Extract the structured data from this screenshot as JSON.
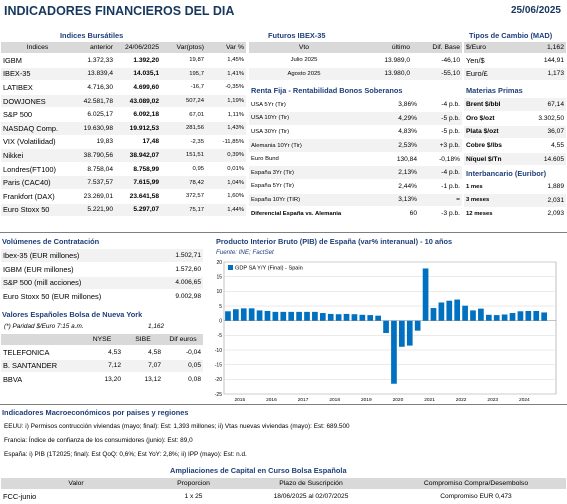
{
  "header": {
    "title": "INDICADORES FINANCIEROS DEL DIA",
    "date": "25/06/2025"
  },
  "sections": {
    "indices": "Indices Bursátiles",
    "futuros": "Futuros  IBEX-35",
    "tipos_cambio": "Tipos de Cambio (MAD)",
    "renta_fija": "Renta Fija - Rentabilidad Bonos Soberanos",
    "materias": "Materias Primas",
    "euribor": "Interbancario (Euribor)",
    "volumenes": "Volúmenes de Contratación",
    "valores_ny": "Valores Españoles Bolsa de Nueva York",
    "pib": "Producto Interior Bruto (PIB) de España (var% interanual) - 10 años",
    "macro": "Indicadores Macroeconómicos por paises y regiones",
    "ampliaciones": "Ampliaciones de Capital en Curso Bolsa Española"
  },
  "indices": {
    "headers": [
      "Indices",
      "anterior",
      "24/06/2025",
      "Var(ptos)",
      "Var %"
    ],
    "rows": [
      [
        "IGBM",
        "1.372,33",
        "1.392,20",
        "19,87",
        "1,45%"
      ],
      [
        "IBEX-35",
        "13.839,4",
        "14.035,1",
        "195,7",
        "1,41%"
      ],
      [
        "LATIBEX",
        "4.716,30",
        "4.699,60",
        "-16,7",
        "-0,35%"
      ],
      [
        "DOWJONES",
        "42.581,78",
        "43.089,02",
        "507,24",
        "1,19%"
      ],
      [
        "S&P 500",
        "6.025,17",
        "6.092,18",
        "67,01",
        "1,11%"
      ],
      [
        "NASDAQ Comp.",
        "19.630,98",
        "19.912,53",
        "281,56",
        "1,43%"
      ],
      [
        "VIX (Volatilidad)",
        "19,83",
        "17,48",
        "-2,35",
        "-11,85%"
      ],
      [
        "Nikkei",
        "38.790,56",
        "38.942,07",
        "151,51",
        "0,39%"
      ],
      [
        "Londres(FT100)",
        "8.758,04",
        "8.758,99",
        "0,95",
        "0,01%"
      ],
      [
        "Paris (CAC40)",
        "7.537,57",
        "7.615,99",
        "78,42",
        "1,04%"
      ],
      [
        "Frankfort (DAX)",
        "23.269,01",
        "23.641,58",
        "372,57",
        "1,60%"
      ],
      [
        "Euro Stoxx 50",
        "5.221,90",
        "5.297,07",
        "75,17",
        "1,44%"
      ]
    ]
  },
  "futuros": {
    "headers": [
      "Vto",
      "último",
      "Dif. Base"
    ],
    "rows": [
      [
        "Julio 2025",
        "13.989,0",
        "-46,10"
      ],
      [
        "Agosto 2025",
        "13.980,0",
        "-55,10"
      ]
    ]
  },
  "tipos_cambio": {
    "rows": [
      [
        "$/Euro",
        "1,162"
      ],
      [
        "Yen/$",
        "144,91"
      ],
      [
        "Euro/£",
        "1,173"
      ]
    ]
  },
  "renta_fija": {
    "rows": [
      [
        "USA 5Yr (Tir)",
        "3,86%",
        "-4 p.b."
      ],
      [
        "USA 10Yr (Tir)",
        "4,29%",
        "-5 p.b."
      ],
      [
        "USA 30Yr (Tir)",
        "4,83%",
        "-5 p.b."
      ],
      [
        "Alemania 10Yr (Tir)",
        "2,53%",
        "+3 p.b."
      ],
      [
        "Euro Bund",
        "130,84",
        "-0,18%"
      ],
      [
        "España 3Yr (Tir)",
        "2,13%",
        "-4 p.b."
      ],
      [
        "España 5Yr (Tir)",
        "2,44%",
        "-1 p.b."
      ],
      [
        "España 10Yr (TIR)",
        "3,13%",
        "="
      ],
      [
        "Diferencial España vs. Alemania",
        "60",
        "-3 p.b."
      ]
    ]
  },
  "materias": {
    "rows": [
      [
        "Brent $/bbl",
        "67,14"
      ],
      [
        "Oro $/ozt",
        "3.302,50"
      ],
      [
        "Plata $/ozt",
        "36,07"
      ],
      [
        "Cobre $/lbs",
        "4,55"
      ],
      [
        "Níquel $/Tn",
        "14.605"
      ]
    ]
  },
  "euribor": {
    "rows": [
      [
        "1 mes",
        "1,889"
      ],
      [
        "3 meses",
        "2,031"
      ],
      [
        "12 meses",
        "2,093"
      ]
    ]
  },
  "volumenes": {
    "rows": [
      [
        "Ibex-35 (EUR millones)",
        "1.502,71"
      ],
      [
        "IGBM (EUR millones)",
        "1.572,60"
      ],
      [
        "S&P 500 (mill acciones)",
        "4.006,65"
      ],
      [
        "Euro Stoxx 50 (EUR millones)",
        "9.002,98"
      ]
    ]
  },
  "valores_ny": {
    "paridad_label": "(*) Paridad $/Euro 7:15 a.m.",
    "paridad_value": "1,162",
    "headers": [
      "",
      "NYSE",
      "SIBE",
      "Dif euros"
    ],
    "rows": [
      [
        "TELEFONICA",
        "4,53",
        "4,58",
        "-0,04"
      ],
      [
        "B. SANTANDER",
        "7,12",
        "7,07",
        "0,05"
      ],
      [
        "BBVA",
        "13,20",
        "13,12",
        "0,08"
      ]
    ]
  },
  "macro": {
    "lines": [
      "EEUU: i) Permisos contrucción viviendas (mayo; final): Est: 1,393 millones; ii) Vtas nuevas viviendas (mayo): Est: 689.500",
      "Francia: Índice de confianza de los consumidores (junio): Est: 89,0",
      "España: i) PIB (1T2025; final): Est QoQ: 0,6%; Est YoY: 2,8%; ii) IPP (mayo): Est: n.d."
    ]
  },
  "ampliaciones": {
    "headers": [
      "Valor",
      "Proporcion",
      "Plazo de Suscripción",
      "Compromiso Compra/Desembolso"
    ],
    "rows": [
      [
        "FCC-junio",
        "1 x 25",
        "18/06/2025 al 02/07/2025",
        "Compromiso EUR 0,473"
      ]
    ]
  },
  "chart_data": {
    "type": "bar",
    "title": "Producto Interior Bruto (PIB) de España (var% interanual) - 10 años",
    "subtitle": "Fuente: INE; FactSet",
    "legend": "GDP SA Y/Y (Final) - Spain",
    "legend_position": "top-left",
    "grid": true,
    "bar_color": "#0070c0",
    "xlabel": "",
    "ylabel": "",
    "ylim": [
      -25,
      20
    ],
    "y_ticks": [
      20,
      15,
      10,
      5,
      0,
      -5,
      -10,
      -15,
      -20,
      -25
    ],
    "x_ticks": [
      "2015",
      "2016",
      "2017",
      "2018",
      "2019",
      "2020",
      "2021",
      "2022",
      "2023",
      "2024"
    ],
    "x_start": 2015.0,
    "x_end": 2025.5,
    "categories": [
      "2015-Q1",
      "2015-Q2",
      "2015-Q3",
      "2015-Q4",
      "2016-Q1",
      "2016-Q2",
      "2016-Q3",
      "2016-Q4",
      "2017-Q1",
      "2017-Q2",
      "2017-Q3",
      "2017-Q4",
      "2018-Q1",
      "2018-Q2",
      "2018-Q3",
      "2018-Q4",
      "2019-Q1",
      "2019-Q2",
      "2019-Q3",
      "2019-Q4",
      "2020-Q1",
      "2020-Q2",
      "2020-Q3",
      "2020-Q4",
      "2021-Q1",
      "2021-Q2",
      "2021-Q3",
      "2021-Q4",
      "2022-Q1",
      "2022-Q2",
      "2022-Q3",
      "2022-Q4",
      "2023-Q1",
      "2023-Q2",
      "2023-Q3",
      "2023-Q4",
      "2024-Q1",
      "2024-Q2",
      "2024-Q3",
      "2024-Q4",
      "2025-Q1"
    ],
    "values": [
      3.2,
      3.9,
      4.2,
      4.2,
      3.5,
      3.3,
      3.0,
      3.0,
      3.0,
      3.0,
      3.0,
      3.0,
      2.6,
      2.3,
      2.2,
      2.3,
      2.2,
      2.0,
      1.9,
      1.7,
      -4.2,
      -21.5,
      -8.9,
      -8.5,
      -3.4,
      17.8,
      4.3,
      6.2,
      6.8,
      7.2,
      5.1,
      3.5,
      4.1,
      2.0,
      1.9,
      2.1,
      2.6,
      3.2,
      3.3,
      3.3,
      2.8
    ]
  }
}
